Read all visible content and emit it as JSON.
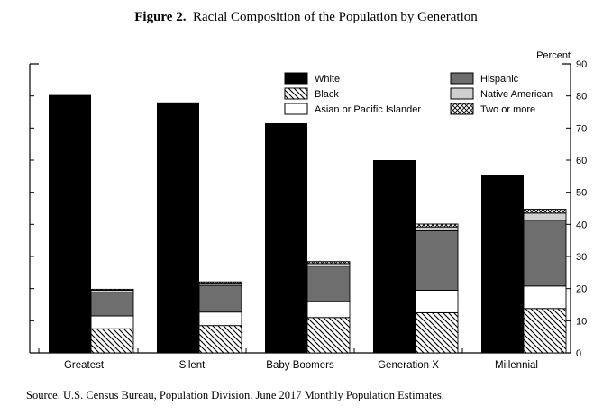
{
  "figure": {
    "label": "Figure 2.",
    "title": "Racial Composition of the Population by Generation",
    "source": "Source.  U.S. Census Bureau, Population Division.  June 2017 Monthly Population Estimates."
  },
  "chart_data": {
    "type": "bar",
    "subtype": "grouped + stacked",
    "title": "Racial Composition of the Population by Generation",
    "ylabel": "Percent",
    "ylim": [
      0,
      90
    ],
    "yticks": [
      0,
      10,
      20,
      30,
      40,
      50,
      60,
      70,
      80,
      90
    ],
    "y_axis_side": "right",
    "categories": [
      "Greatest",
      "Silent",
      "Baby Boomers",
      "Generation X",
      "Millennial"
    ],
    "white": [
      80.3,
      78.0,
      71.5,
      60.0,
      55.5
    ],
    "stack_order": [
      "Black",
      "Asian or Pacific Islander",
      "Hispanic",
      "Native American",
      "Two or more"
    ],
    "stacked_series": [
      {
        "name": "Black",
        "values": [
          7.5,
          8.5,
          11.0,
          12.5,
          13.8
        ]
      },
      {
        "name": "Asian or Pacific Islander",
        "values": [
          4.0,
          4.2,
          5.0,
          7.0,
          7.0
        ]
      },
      {
        "name": "Hispanic",
        "values": [
          7.3,
          8.3,
          11.0,
          18.5,
          20.5
        ]
      },
      {
        "name": "Native American",
        "values": [
          0.7,
          0.7,
          0.8,
          1.2,
          2.2
        ]
      },
      {
        "name": "Two or more",
        "values": [
          0.3,
          0.4,
          0.6,
          0.9,
          1.2
        ]
      }
    ],
    "legend": [
      {
        "name": "White",
        "pattern": "solid-black"
      },
      {
        "name": "Black",
        "pattern": "diagonal-hatch"
      },
      {
        "name": "Asian or Pacific Islander",
        "pattern": "white"
      },
      {
        "name": "Hispanic",
        "pattern": "dark-gray"
      },
      {
        "name": "Native American",
        "pattern": "light-gray"
      },
      {
        "name": "Two or more",
        "pattern": "cross-hatch"
      }
    ],
    "legend_position": "top-right",
    "colors": {
      "white_bar": "#000000",
      "hispanic": "#6e6e6e",
      "native_american": "#cfcfcf",
      "asian": "#ffffff",
      "hatch": "#000000"
    }
  }
}
